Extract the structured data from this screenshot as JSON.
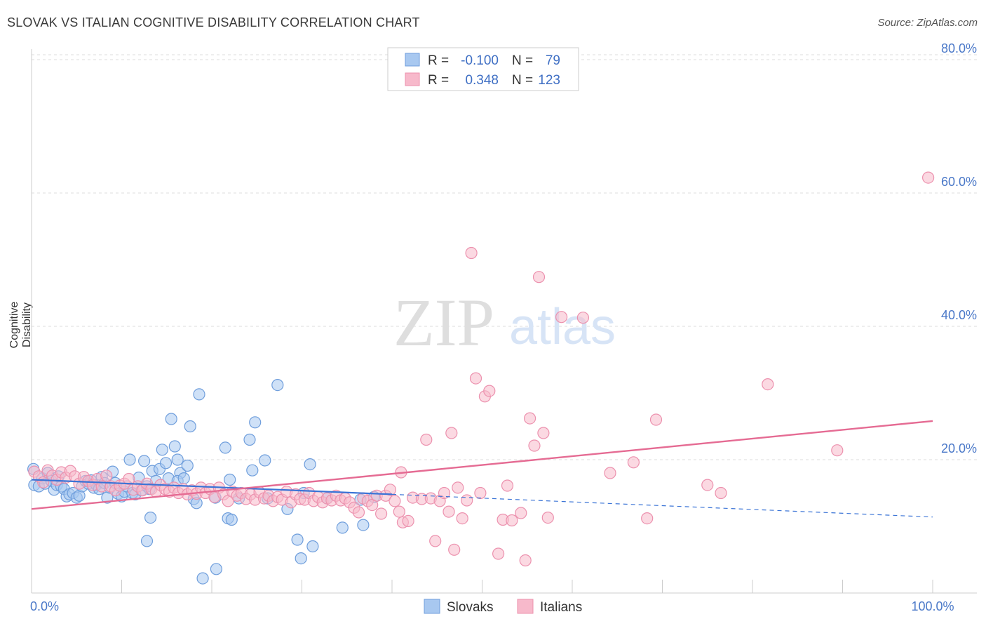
{
  "header": {
    "title": "SLOVAK VS ITALIAN COGNITIVE DISABILITY CORRELATION CHART",
    "source": "Source: ZipAtlas.com"
  },
  "watermark": {
    "zip": "ZIP",
    "atlas": "atlas"
  },
  "colors": {
    "slovak_fill": "#a8c8f0",
    "slovak_stroke": "#6f9edc",
    "slovak_line": "#3b74d6",
    "italian_fill": "#f7b9cb",
    "italian_stroke": "#ec91ae",
    "italian_line": "#e56b93",
    "axis_text": "#4a78c8",
    "grid": "#dddddd"
  },
  "stats": {
    "slovak": {
      "r_label": "R =",
      "r_value": "-0.100",
      "n_label": "N =",
      "n_value": "79"
    },
    "italian": {
      "r_label": "R =",
      "r_value": "0.348",
      "n_label": "N =",
      "n_value": "123"
    }
  },
  "chart_data": {
    "type": "scatter",
    "title": "SLOVAK VS ITALIAN COGNITIVE DISABILITY CORRELATION CHART",
    "xlabel": "",
    "ylabel": "Cognitive Disability",
    "xlim": [
      0,
      100
    ],
    "ylim": [
      0,
      82
    ],
    "y_ticks": [
      {
        "value": 20,
        "label": "20.0%"
      },
      {
        "value": 40,
        "label": "40.0%"
      },
      {
        "value": 60,
        "label": "60.0%"
      },
      {
        "value": 80,
        "label": "80.0%"
      }
    ],
    "x_ticks": [
      {
        "value": 0,
        "label": "0.0%"
      },
      {
        "value": 100,
        "label": "100.0%"
      }
    ],
    "legend_position": "bottom-center",
    "grid": true,
    "series": [
      {
        "name": "Slovaks",
        "color": "#a8c8f0",
        "trend": {
          "x0": 0,
          "y0": 17.0,
          "x1": 40,
          "y1": 14.8,
          "dash_to_x": 100,
          "dash_to_y": 11.4
        },
        "points": [
          [
            0.2,
            18.6
          ],
          [
            0.3,
            16.2
          ],
          [
            0.8,
            16.0
          ],
          [
            1.2,
            17.2
          ],
          [
            1.5,
            16.4
          ],
          [
            1.8,
            18.0
          ],
          [
            2.2,
            16.8
          ],
          [
            2.5,
            15.5
          ],
          [
            2.8,
            16.2
          ],
          [
            3.0,
            17.5
          ],
          [
            3.3,
            16.0
          ],
          [
            3.6,
            15.6
          ],
          [
            3.9,
            14.5
          ],
          [
            4.2,
            14.8
          ],
          [
            4.6,
            15.0
          ],
          [
            5.0,
            14.3
          ],
          [
            5.3,
            14.6
          ],
          [
            5.6,
            16.0
          ],
          [
            6.0,
            16.8
          ],
          [
            6.3,
            16.4
          ],
          [
            6.6,
            16.9
          ],
          [
            6.9,
            15.8
          ],
          [
            7.2,
            16.2
          ],
          [
            7.5,
            15.6
          ],
          [
            7.8,
            17.4
          ],
          [
            8.1,
            16.5
          ],
          [
            8.4,
            14.3
          ],
          [
            8.7,
            15.8
          ],
          [
            9.0,
            18.2
          ],
          [
            9.3,
            16.5
          ],
          [
            9.6,
            14.9
          ],
          [
            10.0,
            14.5
          ],
          [
            10.3,
            15.2
          ],
          [
            10.6,
            16.0
          ],
          [
            10.9,
            20.0
          ],
          [
            11.2,
            15.0
          ],
          [
            11.5,
            14.8
          ],
          [
            11.9,
            17.3
          ],
          [
            12.2,
            15.4
          ],
          [
            12.5,
            19.8
          ],
          [
            12.8,
            16.0
          ],
          [
            13.1,
            15.6
          ],
          [
            13.4,
            18.3
          ],
          [
            13.8,
            16.8
          ],
          [
            13.2,
            11.3
          ],
          [
            12.8,
            7.8
          ],
          [
            14.2,
            18.6
          ],
          [
            14.5,
            21.5
          ],
          [
            14.9,
            19.5
          ],
          [
            15.2,
            17.2
          ],
          [
            15.5,
            26.1
          ],
          [
            15.9,
            22.0
          ],
          [
            16.2,
            20.0
          ],
          [
            16.5,
            18.0
          ],
          [
            16.2,
            16.8
          ],
          [
            16.9,
            17.2
          ],
          [
            17.3,
            19.1
          ],
          [
            17.6,
            25.0
          ],
          [
            18.0,
            14.1
          ],
          [
            18.3,
            13.5
          ],
          [
            18.6,
            29.8
          ],
          [
            19.0,
            2.2
          ],
          [
            20.4,
            14.3
          ],
          [
            20.5,
            3.6
          ],
          [
            21.5,
            21.8
          ],
          [
            21.8,
            11.2
          ],
          [
            22.2,
            11.0
          ],
          [
            22.0,
            17.0
          ],
          [
            23.0,
            14.2
          ],
          [
            24.2,
            23.0
          ],
          [
            24.5,
            18.4
          ],
          [
            24.8,
            25.6
          ],
          [
            25.9,
            19.9
          ],
          [
            26.2,
            14.2
          ],
          [
            27.3,
            31.2
          ],
          [
            28.4,
            12.6
          ],
          [
            29.5,
            8.0
          ],
          [
            29.9,
            5.2
          ],
          [
            30.2,
            15.0
          ],
          [
            30.9,
            19.3
          ],
          [
            31.2,
            7.0
          ],
          [
            32.8,
            14.2
          ],
          [
            34.5,
            9.8
          ],
          [
            36.5,
            14.0
          ],
          [
            36.8,
            10.2
          ],
          [
            38.0,
            14.4
          ]
        ]
      },
      {
        "name": "Italians",
        "color": "#f7b9cb",
        "trend": {
          "x0": 0,
          "y0": 12.6,
          "x1": 100,
          "y1": 25.8
        },
        "points": [
          [
            0.3,
            18.2
          ],
          [
            0.8,
            17.5
          ],
          [
            1.3,
            16.6
          ],
          [
            1.8,
            18.4
          ],
          [
            2.3,
            17.6
          ],
          [
            2.8,
            17.0
          ],
          [
            3.3,
            18.1
          ],
          [
            3.8,
            17.3
          ],
          [
            4.3,
            18.3
          ],
          [
            4.8,
            17.5
          ],
          [
            5.3,
            16.4
          ],
          [
            5.8,
            17.4
          ],
          [
            6.3,
            16.8
          ],
          [
            6.8,
            16.2
          ],
          [
            7.3,
            17.1
          ],
          [
            7.8,
            16.0
          ],
          [
            8.3,
            17.6
          ],
          [
            8.8,
            16.0
          ],
          [
            9.3,
            15.4
          ],
          [
            9.8,
            16.1
          ],
          [
            10.3,
            16.4
          ],
          [
            10.8,
            17.1
          ],
          [
            11.3,
            15.5
          ],
          [
            11.8,
            16.0
          ],
          [
            12.3,
            15.4
          ],
          [
            12.8,
            16.4
          ],
          [
            13.3,
            15.6
          ],
          [
            13.8,
            15.2
          ],
          [
            14.3,
            16.2
          ],
          [
            14.8,
            15.6
          ],
          [
            15.3,
            15.2
          ],
          [
            15.8,
            15.8
          ],
          [
            16.3,
            15.0
          ],
          [
            16.8,
            15.6
          ],
          [
            17.3,
            14.8
          ],
          [
            17.8,
            15.4
          ],
          [
            18.3,
            14.9
          ],
          [
            18.8,
            15.8
          ],
          [
            19.3,
            15.0
          ],
          [
            19.8,
            15.6
          ],
          [
            20.3,
            14.4
          ],
          [
            20.8,
            15.8
          ],
          [
            21.3,
            14.8
          ],
          [
            21.8,
            13.8
          ],
          [
            22.3,
            15.2
          ],
          [
            22.8,
            14.6
          ],
          [
            23.3,
            15.0
          ],
          [
            23.8,
            14.1
          ],
          [
            24.3,
            14.8
          ],
          [
            24.8,
            14.0
          ],
          [
            25.3,
            15.1
          ],
          [
            25.8,
            14.2
          ],
          [
            26.3,
            14.6
          ],
          [
            26.8,
            13.8
          ],
          [
            27.3,
            14.4
          ],
          [
            27.8,
            14.0
          ],
          [
            28.3,
            15.2
          ],
          [
            28.8,
            13.6
          ],
          [
            29.3,
            14.8
          ],
          [
            29.8,
            14.1
          ],
          [
            30.3,
            14.0
          ],
          [
            30.8,
            15.0
          ],
          [
            31.3,
            13.8
          ],
          [
            31.8,
            14.4
          ],
          [
            32.3,
            13.6
          ],
          [
            32.8,
            14.2
          ],
          [
            33.3,
            13.9
          ],
          [
            33.8,
            14.6
          ],
          [
            34.3,
            13.9
          ],
          [
            34.8,
            14.2
          ],
          [
            35.3,
            13.6
          ],
          [
            35.8,
            12.8
          ],
          [
            36.3,
            12.1
          ],
          [
            36.8,
            14.2
          ],
          [
            37.3,
            13.8
          ],
          [
            37.8,
            13.2
          ],
          [
            38.3,
            14.6
          ],
          [
            38.8,
            11.9
          ],
          [
            39.3,
            14.6
          ],
          [
            39.8,
            15.5
          ],
          [
            40.3,
            13.8
          ],
          [
            40.8,
            12.2
          ],
          [
            41.2,
            10.6
          ],
          [
            41.8,
            10.8
          ],
          [
            41.0,
            18.1
          ],
          [
            42.3,
            14.3
          ],
          [
            43.3,
            14.1
          ],
          [
            43.8,
            23.0
          ],
          [
            44.3,
            14.2
          ],
          [
            44.8,
            7.8
          ],
          [
            45.3,
            13.8
          ],
          [
            45.8,
            15.0
          ],
          [
            46.3,
            12.2
          ],
          [
            46.6,
            24.0
          ],
          [
            46.9,
            6.5
          ],
          [
            47.3,
            15.8
          ],
          [
            47.8,
            11.2
          ],
          [
            48.3,
            13.9
          ],
          [
            48.8,
            51.0
          ],
          [
            49.3,
            32.2
          ],
          [
            49.8,
            15.0
          ],
          [
            50.3,
            29.5
          ],
          [
            50.8,
            30.3
          ],
          [
            51.8,
            5.9
          ],
          [
            52.3,
            11.0
          ],
          [
            52.8,
            16.1
          ],
          [
            53.3,
            10.9
          ],
          [
            54.3,
            12.0
          ],
          [
            54.8,
            4.9
          ],
          [
            55.3,
            26.2
          ],
          [
            55.8,
            22.1
          ],
          [
            56.3,
            47.4
          ],
          [
            56.8,
            24.0
          ],
          [
            57.3,
            11.3
          ],
          [
            58.8,
            41.4
          ],
          [
            61.2,
            41.3
          ],
          [
            64.2,
            18.0
          ],
          [
            66.8,
            19.6
          ],
          [
            68.3,
            11.2
          ],
          [
            69.3,
            26.0
          ],
          [
            75.0,
            16.2
          ],
          [
            76.5,
            15.0
          ],
          [
            81.7,
            31.3
          ],
          [
            89.4,
            21.4
          ],
          [
            99.5,
            62.3
          ]
        ]
      }
    ]
  }
}
